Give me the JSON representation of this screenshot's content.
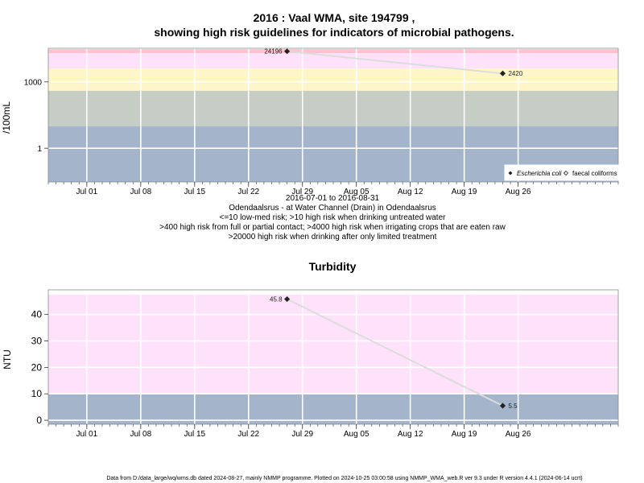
{
  "title": {
    "line1": "2016 : Vaal WMA, site 194799 ,",
    "line2": "showing high risk guidelines for indicators of microbial pathogens."
  },
  "chart_data": [
    {
      "type": "line",
      "ylabel": "/100mL",
      "yscale": "log10",
      "ylim": [
        0.03,
        20000
      ],
      "yticks": [
        {
          "value": 1,
          "label": "1"
        },
        {
          "value": 1000,
          "label": "1000"
        }
      ],
      "xlim": [
        "2016-06-26",
        "2016-09-08"
      ],
      "xticks": [
        {
          "date": "2016-07-01",
          "label": "Jul 01"
        },
        {
          "date": "2016-07-08",
          "label": "Jul 08"
        },
        {
          "date": "2016-07-15",
          "label": "Jul 15"
        },
        {
          "date": "2016-07-22",
          "label": "Jul 22"
        },
        {
          "date": "2016-07-29",
          "label": "Jul 29"
        },
        {
          "date": "2016-08-05",
          "label": "Aug 05"
        },
        {
          "date": "2016-08-12",
          "label": "Aug 12"
        },
        {
          "date": "2016-08-19",
          "label": "Aug 19"
        },
        {
          "date": "2016-08-26",
          "label": "Aug 26"
        }
      ],
      "bands": [
        {
          "from": 0.03,
          "to": 10,
          "color": "#a3b4cb"
        },
        {
          "from": 10,
          "to": 400,
          "color": "#c5cdc4"
        },
        {
          "from": 400,
          "to": 4000,
          "color": "#fef6c8"
        },
        {
          "from": 4000,
          "to": 20000,
          "color": "#fde2fa"
        },
        {
          "from": 20000,
          "to": 30000,
          "color": "#fcc2cf"
        }
      ],
      "grid": true,
      "series": [
        {
          "name": "Escherichia coli",
          "marker": "filled-diamond",
          "points": [
            {
              "date": "2016-07-27",
              "value": 24196,
              "label": "24196",
              "label_side": "left"
            },
            {
              "date": "2016-08-24",
              "value": 2420,
              "label": "2420",
              "label_side": "right"
            }
          ]
        },
        {
          "name": "faecal coliforms",
          "marker": "open-diamond",
          "points": []
        }
      ],
      "legend_position": "bottom-right",
      "caption": [
        "2016-07-01 to 2016-08-31",
        "Odendaalsrus - at Water Channel (Drain) in Odendaalsrus",
        "<=10 low-med risk; >10 high risk when drinking untreated water",
        ">400 high risk from full or partial contact; >4000 high risk when irrigating crops that are eaten raw",
        ">20000 high risk when drinking after only limited treatment"
      ]
    },
    {
      "type": "line",
      "title": "Turbidity",
      "ylabel": "NTU",
      "ylim": [
        -1.5,
        47.5
      ],
      "yticks": [
        {
          "value": 0,
          "label": "0"
        },
        {
          "value": 10,
          "label": "10"
        },
        {
          "value": 20,
          "label": "20"
        },
        {
          "value": 30,
          "label": "30"
        },
        {
          "value": 40,
          "label": "40"
        }
      ],
      "xlim": [
        "2016-06-26",
        "2016-09-08"
      ],
      "xticks": [
        {
          "date": "2016-07-01",
          "label": "Jul 01"
        },
        {
          "date": "2016-07-08",
          "label": "Jul 08"
        },
        {
          "date": "2016-07-15",
          "label": "Jul 15"
        },
        {
          "date": "2016-07-22",
          "label": "Jul 22"
        },
        {
          "date": "2016-07-29",
          "label": "Jul 29"
        },
        {
          "date": "2016-08-05",
          "label": "Aug 05"
        },
        {
          "date": "2016-08-12",
          "label": "Aug 12"
        },
        {
          "date": "2016-08-19",
          "label": "Aug 19"
        },
        {
          "date": "2016-08-26",
          "label": "Aug 26"
        }
      ],
      "bands": [
        {
          "from": -1.5,
          "to": 10,
          "color": "#a3b4cb"
        },
        {
          "from": 10,
          "to": 47.5,
          "color": "#fde2fa"
        }
      ],
      "grid": true,
      "series": [
        {
          "marker": "filled-diamond",
          "points": [
            {
              "date": "2016-07-27",
              "value": 45.8,
              "label": "45.8",
              "label_side": "left"
            },
            {
              "date": "2016-08-24",
              "value": 5.5,
              "label": "5.5",
              "label_side": "right"
            }
          ]
        }
      ]
    }
  ],
  "footer": "Data from D:/data_large/wq/wms.db dated 2024-08-27, mainly NMMP programme. Plotted on 2024-10-25 03:00:58 using NMMP_WMA_web.R ver 9.3 under R version 4.4.1 (2024-06-14 ucrt)",
  "colors": {
    "grid": "#ffffff",
    "line": "#dcdcdc",
    "marker": "#222222",
    "frame": "#8a8a8a"
  }
}
